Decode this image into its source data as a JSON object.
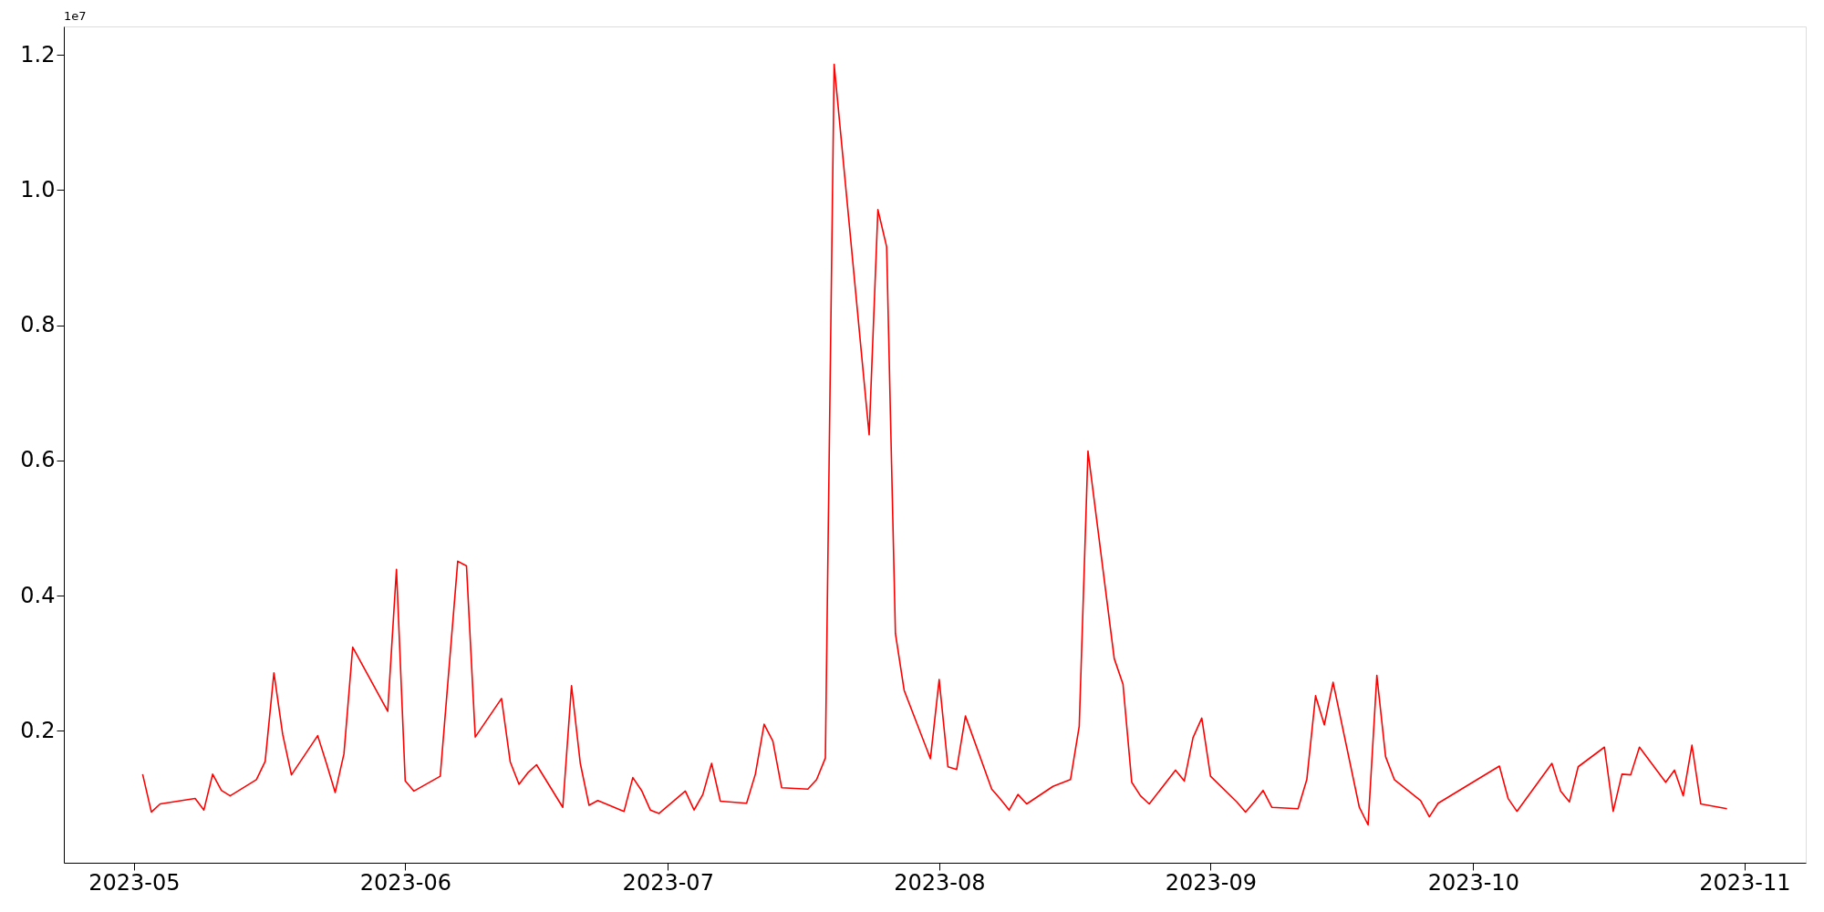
{
  "chart_data": {
    "type": "line",
    "x": [
      "2023-05-02",
      "2023-05-03",
      "2023-05-04",
      "2023-05-08",
      "2023-05-09",
      "2023-05-10",
      "2023-05-11",
      "2023-05-12",
      "2023-05-15",
      "2023-05-16",
      "2023-05-17",
      "2023-05-18",
      "2023-05-19",
      "2023-05-22",
      "2023-05-23",
      "2023-05-24",
      "2023-05-25",
      "2023-05-26",
      "2023-05-30",
      "2023-05-31",
      "2023-06-01",
      "2023-06-02",
      "2023-06-05",
      "2023-06-07",
      "2023-06-08",
      "2023-06-09",
      "2023-06-12",
      "2023-06-13",
      "2023-06-14",
      "2023-06-15",
      "2023-06-16",
      "2023-06-19",
      "2023-06-20",
      "2023-06-21",
      "2023-06-22",
      "2023-06-23",
      "2023-06-26",
      "2023-06-27",
      "2023-06-28",
      "2023-06-29",
      "2023-06-30",
      "2023-07-03",
      "2023-07-04",
      "2023-07-05",
      "2023-07-06",
      "2023-07-07",
      "2023-07-10",
      "2023-07-11",
      "2023-07-12",
      "2023-07-13",
      "2023-07-14",
      "2023-07-17",
      "2023-07-18",
      "2023-07-19",
      "2023-07-20",
      "2023-07-24",
      "2023-07-25",
      "2023-07-26",
      "2023-07-27",
      "2023-07-28",
      "2023-07-31",
      "2023-08-01",
      "2023-08-02",
      "2023-08-03",
      "2023-08-04",
      "2023-08-07",
      "2023-08-08",
      "2023-08-09",
      "2023-08-10",
      "2023-08-11",
      "2023-08-14",
      "2023-08-16",
      "2023-08-17",
      "2023-08-18",
      "2023-08-21",
      "2023-08-22",
      "2023-08-23",
      "2023-08-24",
      "2023-08-25",
      "2023-08-28",
      "2023-08-29",
      "2023-08-30",
      "2023-08-31",
      "2023-09-01",
      "2023-09-04",
      "2023-09-05",
      "2023-09-06",
      "2023-09-07",
      "2023-09-08",
      "2023-09-11",
      "2023-09-12",
      "2023-09-13",
      "2023-09-14",
      "2023-09-15",
      "2023-09-18",
      "2023-09-19",
      "2023-09-20",
      "2023-09-21",
      "2023-09-22",
      "2023-09-25",
      "2023-09-26",
      "2023-09-27",
      "2023-10-04",
      "2023-10-05",
      "2023-10-06",
      "2023-10-10",
      "2023-10-11",
      "2023-10-12",
      "2023-10-13",
      "2023-10-16",
      "2023-10-17",
      "2023-10-18",
      "2023-10-19",
      "2023-10-20",
      "2023-10-23",
      "2023-10-24",
      "2023-10-25",
      "2023-10-26",
      "2023-10-27",
      "2023-10-30"
    ],
    "series": [
      {
        "color": "#ff0000",
        "values": [
          0.136,
          0.08,
          0.092,
          0.1,
          0.083,
          0.136,
          0.112,
          0.104,
          0.128,
          0.155,
          0.286,
          0.195,
          0.135,
          0.193,
          0.152,
          0.109,
          0.166,
          0.324,
          0.229,
          0.439,
          0.126,
          0.111,
          0.133,
          0.451,
          0.444,
          0.191,
          0.248,
          0.154,
          0.121,
          0.138,
          0.15,
          0.087,
          0.267,
          0.152,
          0.09,
          0.097,
          0.081,
          0.131,
          0.112,
          0.083,
          0.078,
          0.111,
          0.083,
          0.106,
          0.152,
          0.096,
          0.093,
          0.136,
          0.21,
          0.185,
          0.116,
          0.114,
          0.128,
          0.16,
          1.186,
          0.638,
          0.971,
          0.916,
          0.344,
          0.26,
          0.159,
          0.276,
          0.147,
          0.143,
          0.222,
          0.114,
          0.099,
          0.083,
          0.106,
          0.092,
          0.118,
          0.128,
          0.207,
          0.614,
          0.307,
          0.269,
          0.124,
          0.104,
          0.092,
          0.142,
          0.126,
          0.19,
          0.219,
          0.133,
          0.095,
          0.08,
          0.095,
          0.112,
          0.087,
          0.085,
          0.128,
          0.252,
          0.209,
          0.272,
          0.087,
          0.061,
          0.282,
          0.162,
          0.128,
          0.097,
          0.073,
          0.093,
          0.148,
          0.1,
          0.081,
          0.152,
          0.111,
          0.095,
          0.147,
          0.176,
          0.081,
          0.136,
          0.135,
          0.176,
          0.124,
          0.142,
          0.104,
          0.179,
          0.092,
          0.085
        ]
      }
    ],
    "xlim": [
      "2023-04-23",
      "2023-11-08"
    ],
    "xticks": [
      {
        "value": "2023-05-01",
        "label": "2023-05"
      },
      {
        "value": "2023-06-01",
        "label": "2023-06"
      },
      {
        "value": "2023-07-01",
        "label": "2023-07"
      },
      {
        "value": "2023-08-01",
        "label": "2023-08"
      },
      {
        "value": "2023-09-01",
        "label": "2023-09"
      },
      {
        "value": "2023-10-01",
        "label": "2023-10"
      },
      {
        "value": "2023-11-01",
        "label": "2023-11"
      }
    ],
    "ylim": [
      0.005,
      1.242
    ],
    "yticks": [
      0.2,
      0.4,
      0.6,
      0.8,
      {
        "value": 1.0,
        "label": "1.0"
      },
      1.2
    ],
    "annotations": [
      "1e7"
    ],
    "grid": false,
    "legend": false,
    "marker": "none",
    "line_style": "solid"
  }
}
